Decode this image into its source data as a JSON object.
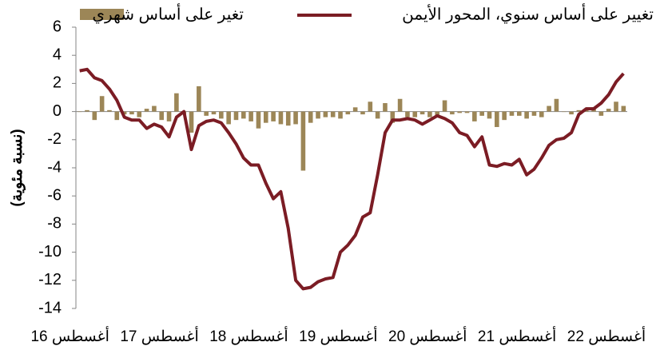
{
  "chart_data": {
    "type": "bar_line",
    "y_label": "(نسبة مئوية)",
    "categories": [
      "أغسطس 16",
      null,
      null,
      null,
      null,
      null,
      null,
      null,
      null,
      null,
      null,
      null,
      "أغسطس 17",
      null,
      null,
      null,
      null,
      null,
      null,
      null,
      null,
      null,
      null,
      null,
      "أغسطس 18",
      null,
      null,
      null,
      null,
      null,
      null,
      null,
      null,
      null,
      null,
      null,
      "أغسطس 19",
      null,
      null,
      null,
      null,
      null,
      null,
      null,
      null,
      null,
      null,
      null,
      "أغسطس 20",
      null,
      null,
      null,
      null,
      null,
      null,
      null,
      null,
      null,
      null,
      null,
      "أغسطس 21",
      null,
      null,
      null,
      null,
      null,
      null,
      null,
      null,
      null,
      null,
      null,
      "أغسطس 22",
      null
    ],
    "series": [
      {
        "name": "تغير على أساس شهري",
        "type": "bar",
        "color": "#9c8657",
        "values": [
          0,
          0.1,
          -0.6,
          1.1,
          0.1,
          -0.6,
          -0.2,
          -0.2,
          -0.4,
          0.2,
          0.4,
          -0.6,
          -0.7,
          1.3,
          -0.2,
          -1.5,
          1.8,
          -0.3,
          -0.2,
          -0.5,
          -0.9,
          -0.6,
          -0.5,
          -0.7,
          -1.2,
          -0.8,
          -0.7,
          -0.9,
          -1.0,
          -0.9,
          -4.2,
          -0.8,
          -0.5,
          -0.4,
          -0.4,
          -0.5,
          -0.2,
          0.3,
          -0.2,
          0.7,
          -0.5,
          0.6,
          -0.8,
          0.9,
          -0.4,
          -0.4,
          -0.2,
          -0.4,
          -0.3,
          0.8,
          -0.2,
          -0.1,
          -0.1,
          -0.7,
          -0.3,
          -0.5,
          -1.1,
          -0.6,
          -0.3,
          -0.3,
          -0.5,
          -0.3,
          -0.4,
          0.4,
          0.9,
          0,
          -0.2,
          0.1,
          0.2,
          0.3,
          -0.3,
          0.2,
          0.7,
          0.4
        ]
      },
      {
        "name": "تغيير على أساس سنوي، المحور الأيمن",
        "type": "line",
        "color": "#7b1c24",
        "values": [
          2.9,
          3.0,
          2.4,
          2.2,
          1.6,
          0.8,
          -0.4,
          -0.6,
          -0.6,
          -1.2,
          -0.9,
          -1.1,
          -1.8,
          -0.4,
          0,
          -2.7,
          -1.0,
          -0.7,
          -0.6,
          -0.8,
          -1.5,
          -2.3,
          -3.3,
          -3.8,
          -3.8,
          -5.1,
          -6.2,
          -5.7,
          -8.3,
          -12.0,
          -12.6,
          -12.5,
          -12.1,
          -11.9,
          -11.8,
          -10.0,
          -9.5,
          -8.8,
          -7.5,
          -7.2,
          -4.5,
          -1.5,
          -0.6,
          -0.6,
          -0.5,
          -0.6,
          -0.9,
          -0.6,
          -0.3,
          -0.5,
          -0.8,
          -1.5,
          -1.7,
          -2.5,
          -1.8,
          -3.8,
          -3.9,
          -3.7,
          -3.8,
          -3.4,
          -4.5,
          -4.1,
          -3.3,
          -2.4,
          -2.0,
          -1.9,
          -1.5,
          -0.2,
          0.2,
          0.2,
          0.6,
          1.2,
          2.1,
          2.7
        ]
      }
    ],
    "ylim": [
      -14,
      6
    ],
    "yticks": [
      -14,
      -12,
      -10,
      -8,
      -6,
      -4,
      -2,
      0,
      2,
      4,
      6
    ]
  }
}
